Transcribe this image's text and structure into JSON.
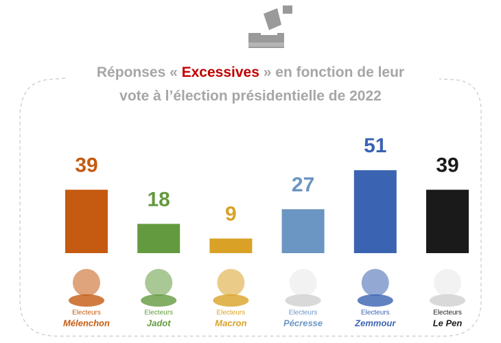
{
  "chart_data": {
    "type": "bar",
    "title": {
      "prefix": "Réponses «",
      "highlight": "Excessives",
      "suffix": "» en fonction de leur",
      "line2": "vote à l’élection présidentielle de 2022"
    },
    "group_label": "Electeurs",
    "categories": [
      "Mélenchon",
      "Jadot",
      "Macron",
      "Pécresse",
      "Zemmour",
      "Le Pen"
    ],
    "values": [
      39,
      18,
      9,
      27,
      51,
      39
    ],
    "colors": [
      "#c55a11",
      "#639a3f",
      "#d9a227",
      "#6b95c2",
      "#3a63b1",
      "#1a1a1a"
    ]
  }
}
